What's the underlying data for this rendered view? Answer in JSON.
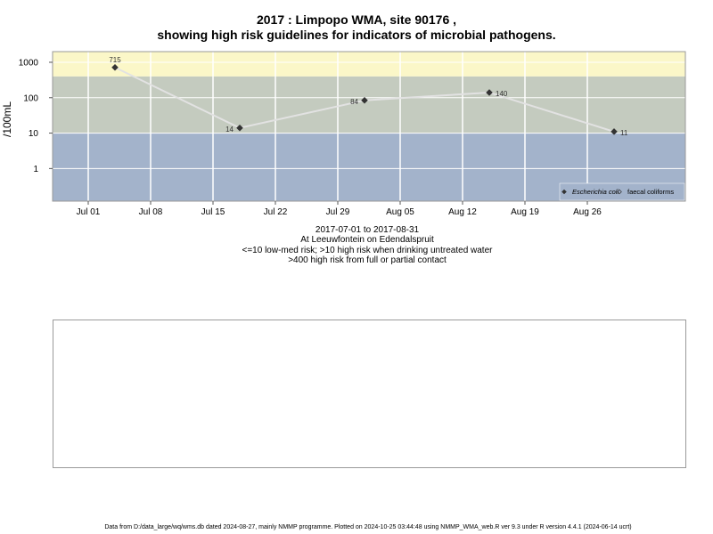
{
  "titles": {
    "line1": "2017 : Limpopo WMA, site 90176 ,",
    "line2": "showing high risk guidelines for indicators of microbial pathogens."
  },
  "caption": {
    "line1": "2017-07-01 to 2017-08-31",
    "line2": "At Leeuwfontein on Edendalspruit",
    "line3": "<=10 low-med risk; >10 high risk when drinking untreated water",
    "line4": ">400 high risk from full or partial contact"
  },
  "footer": "Data from D:/data_large/wq/wms.db dated 2024-08-27, mainly NMMP programme. Plotted on 2024-10-25 03:44:48 using NMMP_WMA_web.R ver 9.3 under R version 4.4.1 (2024-06-14 ucrt)",
  "chart_data": {
    "type": "line",
    "ylabel": "/100mL",
    "y_scale": "log10",
    "ylim": [
      0.12,
      2000
    ],
    "xlim": [
      "2017-06-27",
      "2017-09-06"
    ],
    "grid": true,
    "x_ticks": [
      {
        "date": "2017-07-01",
        "label": "Jul 01"
      },
      {
        "date": "2017-07-08",
        "label": "Jul 08"
      },
      {
        "date": "2017-07-15",
        "label": "Jul 15"
      },
      {
        "date": "2017-07-22",
        "label": "Jul 22"
      },
      {
        "date": "2017-07-29",
        "label": "Jul 29"
      },
      {
        "date": "2017-08-05",
        "label": "Aug 05"
      },
      {
        "date": "2017-08-12",
        "label": "Aug 12"
      },
      {
        "date": "2017-08-19",
        "label": "Aug 19"
      },
      {
        "date": "2017-08-26",
        "label": "Aug 26"
      }
    ],
    "y_ticks": [
      {
        "value": 1,
        "label": "1"
      },
      {
        "value": 10,
        "label": "10"
      },
      {
        "value": 100,
        "label": "100"
      },
      {
        "value": 1000,
        "label": "1000"
      }
    ],
    "risk_bands": [
      {
        "from": 0.12,
        "to": 10,
        "color": "#a3b3cb"
      },
      {
        "from": 10,
        "to": 400,
        "color": "#c4cbbf"
      },
      {
        "from": 400,
        "to": 2000,
        "color": "#fbf7c8"
      }
    ],
    "series": [
      {
        "name": "Escherichia coli",
        "marker": "filled-diamond",
        "color": "#333333",
        "points": [
          {
            "date": "2017-07-04",
            "value": 715,
            "label": "715"
          },
          {
            "date": "2017-07-18",
            "value": 14,
            "label": "14"
          },
          {
            "date": "2017-08-01",
            "value": 84,
            "label": "84"
          },
          {
            "date": "2017-08-15",
            "value": 140,
            "label": "140"
          },
          {
            "date": "2017-08-29",
            "value": 11,
            "label": "11"
          }
        ]
      },
      {
        "name": "faecal coliforms",
        "marker": "open-diamond",
        "color": "#333333",
        "points": []
      }
    ],
    "legend_position": "bottom-right",
    "line_color": "#e2e2e2"
  }
}
